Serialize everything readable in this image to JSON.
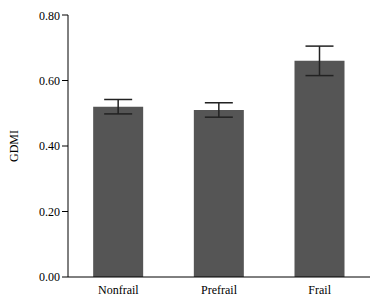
{
  "chart_data": {
    "type": "bar",
    "y_label": "GDMI",
    "categories": [
      "Nonfrail",
      "Prefrail",
      "Frail"
    ],
    "values": [
      0.52,
      0.51,
      0.66
    ],
    "errors": [
      0.022,
      0.022,
      0.045
    ],
    "color": "#555555",
    "ylim": [
      0,
      0.8
    ],
    "yticks": [
      {
        "value": 0,
        "label": "0.00"
      },
      {
        "value": 0.2,
        "label": "0.20"
      },
      {
        "value": 0.4,
        "label": "0.40"
      },
      {
        "value": 0.6,
        "label": "0.60"
      },
      {
        "value": 0.8,
        "label": "0.80"
      }
    ],
    "grid": false
  }
}
